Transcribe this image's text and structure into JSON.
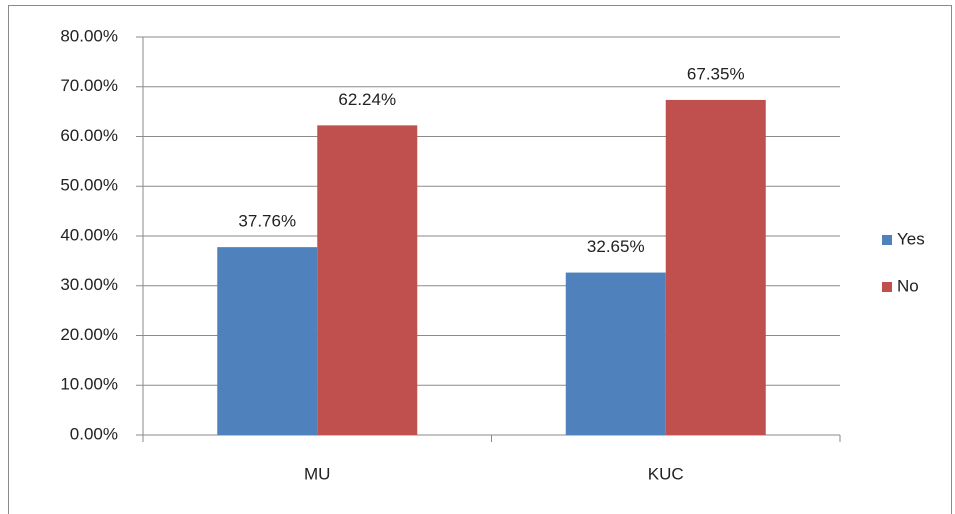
{
  "chart_data": {
    "type": "bar",
    "categories": [
      "MU",
      "KUC"
    ],
    "series": [
      {
        "name": "Yes",
        "color": "#4f81bd",
        "values": [
          37.76,
          32.65
        ],
        "value_labels": [
          "37.76%",
          "32.65%"
        ]
      },
      {
        "name": "No",
        "color": "#c0504d",
        "values": [
          62.24,
          67.35
        ],
        "value_labels": [
          "62.24%",
          "67.35%"
        ]
      }
    ],
    "ylim": [
      0,
      80
    ],
    "yticks": [
      {
        "value": 0,
        "label": "0.00%"
      },
      {
        "value": 10,
        "label": "10.00%"
      },
      {
        "value": 20,
        "label": "20.00%"
      },
      {
        "value": 30,
        "label": "30.00%"
      },
      {
        "value": 40,
        "label": "40.00%"
      },
      {
        "value": 50,
        "label": "50.00%"
      },
      {
        "value": 60,
        "label": "60.00%"
      },
      {
        "value": 70,
        "label": "70.00%"
      },
      {
        "value": 80,
        "label": "80.00%"
      }
    ],
    "grid": true,
    "legend": "right"
  }
}
